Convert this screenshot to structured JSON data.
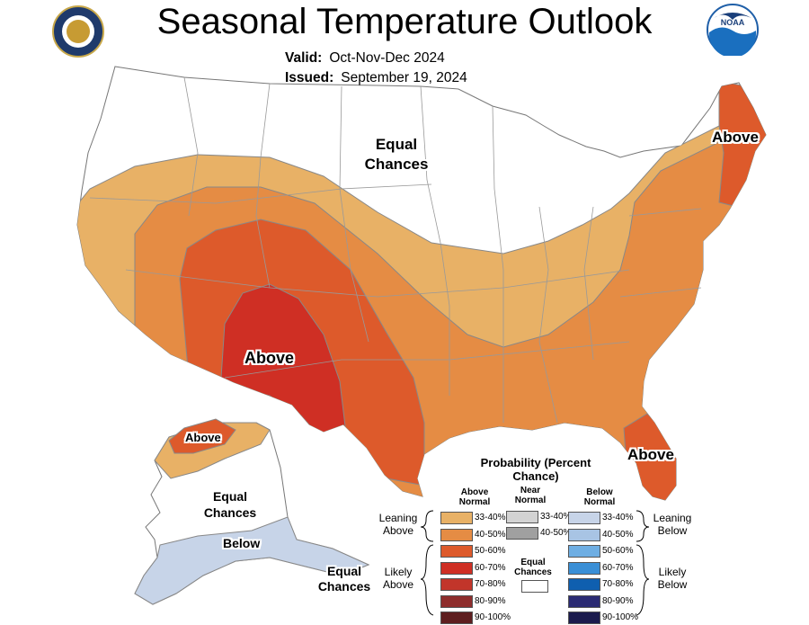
{
  "header": {
    "title": "Seasonal Temperature Outlook",
    "valid_label": "Valid:",
    "valid_value": "Oct-Nov-Dec 2024",
    "issued_label": "Issued:",
    "issued_value": "September 19, 2024"
  },
  "logos": {
    "left": "DEPARTMENT OF COMMERCE • UNITED STATES OF AMERICA",
    "right": "NOAA"
  },
  "map_labels": {
    "conus_equal": "Equal Chances",
    "conus_above_sw": "Above",
    "conus_above_ne": "Above",
    "conus_above_fl": "Above",
    "ak_above": "Above",
    "ak_equal": "Equal Chances",
    "ak_below": "Below",
    "ak_equal_south": "Equal Chances"
  },
  "legend": {
    "title": "Probability (Percent Chance)",
    "col_above": "Above Normal",
    "col_near": "Near Normal",
    "col_below": "Below Normal",
    "leaning_above": "Leaning Above",
    "likely_above": "Likely Above",
    "leaning_below": "Leaning Below",
    "likely_below": "Likely Below",
    "equal_chances": "Equal Chances",
    "ranges": [
      "33-40%",
      "40-50%",
      "50-60%",
      "60-70%",
      "70-80%",
      "80-90%",
      "90-100%"
    ],
    "near_ranges": [
      "33-40%",
      "40-50%"
    ],
    "above_colors": [
      "#e8b166",
      "#e58c44",
      "#dd5a2b",
      "#cf2f24",
      "#c2352a",
      "#8e2d2c",
      "#5e1e1f"
    ],
    "near_colors": [
      "#d3d3d3",
      "#a0a0a0"
    ],
    "below_colors": [
      "#c7d4e8",
      "#a8c4e4",
      "#6eaee3",
      "#3a8fd6",
      "#0f5faf",
      "#2b2b73",
      "#1b1b4d"
    ],
    "equal_color": "#ffffff"
  }
}
